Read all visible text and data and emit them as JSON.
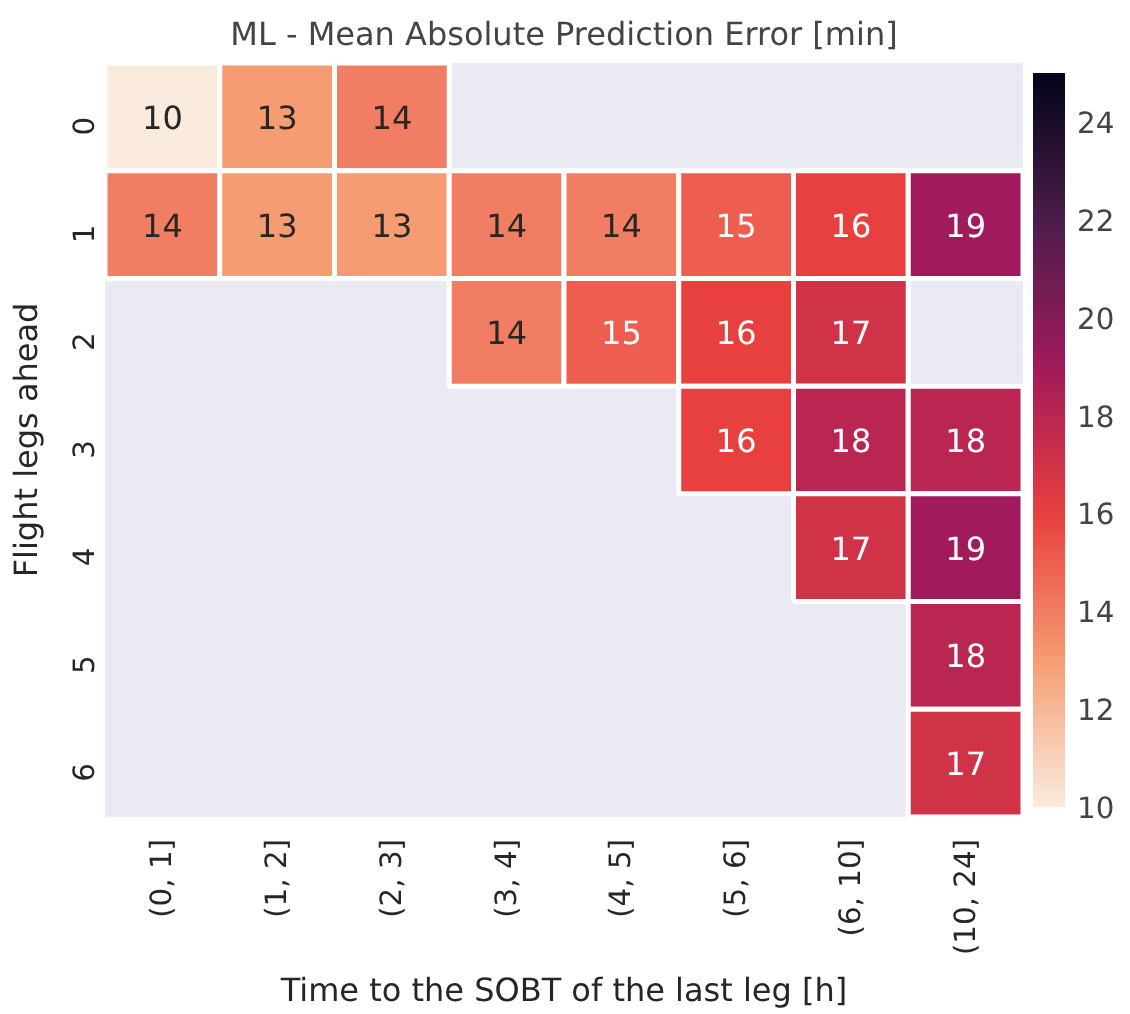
{
  "chart_data": {
    "type": "heatmap",
    "title": "ML - Mean Absolute Prediction Error [min]",
    "xlabel": "Time to the SOBT of the last leg [h]",
    "ylabel": "Flight legs ahead",
    "categories": [
      "(0, 1]",
      "(1, 2]",
      "(2, 3]",
      "(3, 4]",
      "(4, 5]",
      "(5, 6]",
      "(6, 10]",
      "(10, 24]"
    ],
    "y_categories": [
      "0",
      "1",
      "2",
      "3",
      "4",
      "5",
      "6"
    ],
    "cells": [
      [
        10,
        13,
        14,
        null,
        null,
        null,
        null,
        null
      ],
      [
        14,
        13,
        13,
        14,
        14,
        15,
        16,
        19
      ],
      [
        null,
        null,
        null,
        14,
        15,
        16,
        17,
        null
      ],
      [
        null,
        null,
        null,
        null,
        null,
        16,
        18,
        18
      ],
      [
        null,
        null,
        null,
        null,
        null,
        null,
        17,
        19
      ],
      [
        null,
        null,
        null,
        null,
        null,
        null,
        null,
        18
      ],
      [
        null,
        null,
        null,
        null,
        null,
        null,
        null,
        17
      ]
    ],
    "data_labels": true,
    "clim": [
      10,
      25
    ],
    "cticks": [
      10,
      12,
      14,
      16,
      18,
      20,
      22,
      24
    ]
  }
}
